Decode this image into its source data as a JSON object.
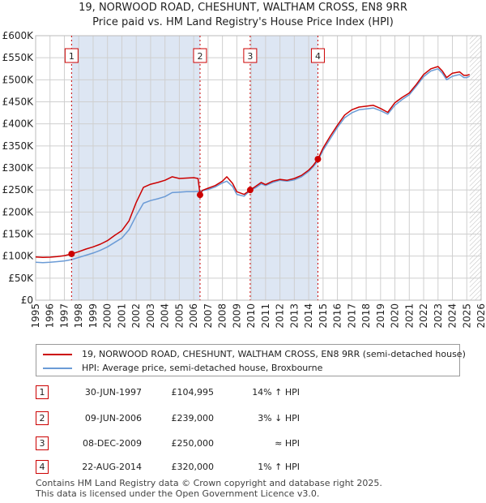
{
  "title_line1": "19, NORWOOD ROAD, CHESHUNT, WALTHAM CROSS, EN8 9RR",
  "title_line2": "Price paid vs. HM Land Registry's House Price Index (HPI)",
  "legend": {
    "property_label": "19, NORWOOD ROAD, CHESHUNT, WALTHAM CROSS, EN8 9RR (semi-detached house)",
    "hpi_label": "HPI: Average price, semi-detached house, Broxbourne"
  },
  "transactions": [
    {
      "num": "1",
      "date": "30-JUN-1997",
      "price": "£104,995",
      "hpi": "14% ↑ HPI"
    },
    {
      "num": "2",
      "date": "09-JUN-2006",
      "price": "£239,000",
      "hpi": "3% ↓ HPI"
    },
    {
      "num": "3",
      "date": "08-DEC-2009",
      "price": "£250,000",
      "hpi": "≈ HPI"
    },
    {
      "num": "4",
      "date": "22-AUG-2014",
      "price": "£320,000",
      "hpi": "1% ↑ HPI"
    }
  ],
  "footer": {
    "line1": "Contains HM Land Registry data © Crown copyright and database right 2025.",
    "line2": "This data is licensed under the Open Government Licence v3.0."
  },
  "colors": {
    "property": "#cc0000",
    "hpi": "#6b9bd6",
    "shade": "#dde6f3",
    "grid": "#cfcfcf"
  },
  "chart_data": {
    "type": "line",
    "xlim": [
      1995,
      2026
    ],
    "ylim": [
      0,
      600000
    ],
    "x_ticks": [
      "1995",
      "1996",
      "1997",
      "1998",
      "1999",
      "2000",
      "2001",
      "2002",
      "2003",
      "2004",
      "2005",
      "2006",
      "2007",
      "2008",
      "2009",
      "2010",
      "2011",
      "2012",
      "2013",
      "2014",
      "2015",
      "2016",
      "2017",
      "2018",
      "2019",
      "2020",
      "2021",
      "2022",
      "2023",
      "2024",
      "2025",
      "2026"
    ],
    "y_ticks": [
      {
        "value": 0,
        "label": "£0"
      },
      {
        "value": 50000,
        "label": "£50K"
      },
      {
        "value": 100000,
        "label": "£100K"
      },
      {
        "value": 150000,
        "label": "£150K"
      },
      {
        "value": 200000,
        "label": "£200K"
      },
      {
        "value": 250000,
        "label": "£250K"
      },
      {
        "value": 300000,
        "label": "£300K"
      },
      {
        "value": 350000,
        "label": "£350K"
      },
      {
        "value": 400000,
        "label": "£400K"
      },
      {
        "value": 450000,
        "label": "£450K"
      },
      {
        "value": 500000,
        "label": "£500K"
      },
      {
        "value": 550000,
        "label": "£550K"
      },
      {
        "value": 600000,
        "label": "£600K"
      }
    ],
    "shaded_ranges": [
      [
        1997.5,
        2006.44
      ],
      [
        2009.93,
        2014.64
      ]
    ],
    "hatched_from": 2025.2,
    "markers": [
      {
        "label": "1",
        "x": 1997.5,
        "y": 104995
      },
      {
        "label": "2",
        "x": 2006.44,
        "y": 239000
      },
      {
        "label": "3",
        "x": 2009.93,
        "y": 250000
      },
      {
        "label": "4",
        "x": 2014.64,
        "y": 320000
      }
    ],
    "series": [
      {
        "name": "19, NORWOOD ROAD, CHESHUNT, WALTHAM CROSS, EN8 9RR (semi-detached house)",
        "color": "#cc0000",
        "x": [
          1995.0,
          1995.5,
          1996.0,
          1996.5,
          1997.0,
          1997.5,
          1998.0,
          1998.5,
          1999.0,
          1999.5,
          2000.0,
          2000.5,
          2001.0,
          2001.5,
          2002.0,
          2002.5,
          2003.0,
          2003.5,
          2004.0,
          2004.5,
          2005.0,
          2005.5,
          2006.0,
          2006.3,
          2006.44,
          2006.6,
          2007.0,
          2007.5,
          2008.0,
          2008.3,
          2008.7,
          2009.0,
          2009.5,
          2009.93,
          2010.3,
          2010.7,
          2011.0,
          2011.5,
          2012.0,
          2012.5,
          2013.0,
          2013.5,
          2014.0,
          2014.3,
          2014.64,
          2015.0,
          2015.5,
          2016.0,
          2016.5,
          2017.0,
          2017.5,
          2018.0,
          2018.5,
          2019.0,
          2019.5,
          2020.0,
          2020.5,
          2021.0,
          2021.5,
          2022.0,
          2022.5,
          2023.0,
          2023.3,
          2023.6,
          2024.0,
          2024.5,
          2024.8,
          2025.0,
          2025.2
        ],
        "values": [
          98000,
          97000,
          97500,
          99000,
          101000,
          104995,
          110000,
          116000,
          121000,
          127000,
          135000,
          147000,
          158000,
          180000,
          222000,
          256000,
          263000,
          267000,
          272000,
          280000,
          276000,
          277000,
          278000,
          276000,
          239000,
          249000,
          254000,
          260000,
          270000,
          280000,
          265000,
          246000,
          240000,
          250000,
          258000,
          267000,
          262000,
          270000,
          274000,
          272000,
          276000,
          283000,
          295000,
          305000,
          320000,
          345000,
          372000,
          397000,
          420000,
          432000,
          438000,
          440000,
          442000,
          435000,
          426000,
          448000,
          460000,
          470000,
          490000,
          512000,
          525000,
          530000,
          520000,
          505000,
          515000,
          518000,
          510000,
          510000,
          512000
        ]
      },
      {
        "name": "HPI: Average price, semi-detached house, Broxbourne",
        "color": "#6b9bd6",
        "x": [
          1995.0,
          1995.5,
          1996.0,
          1996.5,
          1997.0,
          1997.5,
          1998.0,
          1998.5,
          1999.0,
          1999.5,
          2000.0,
          2000.5,
          2001.0,
          2001.5,
          2002.0,
          2002.5,
          2003.0,
          2003.5,
          2004.0,
          2004.5,
          2005.0,
          2005.5,
          2006.0,
          2006.44,
          2007.0,
          2007.5,
          2008.0,
          2008.3,
          2008.7,
          2009.0,
          2009.5,
          2009.93,
          2010.3,
          2010.7,
          2011.0,
          2011.5,
          2012.0,
          2012.5,
          2013.0,
          2013.5,
          2014.0,
          2014.3,
          2014.64,
          2015.0,
          2015.5,
          2016.0,
          2016.5,
          2017.0,
          2017.5,
          2018.0,
          2018.5,
          2019.0,
          2019.5,
          2020.0,
          2020.5,
          2021.0,
          2021.5,
          2022.0,
          2022.5,
          2023.0,
          2023.3,
          2023.6,
          2024.0,
          2024.5,
          2024.8,
          2025.0,
          2025.2
        ],
        "values": [
          86000,
          85000,
          86000,
          87500,
          89000,
          92000,
          97000,
          102000,
          107000,
          113000,
          121000,
          131000,
          141000,
          160000,
          192000,
          220000,
          226000,
          230000,
          235000,
          244000,
          245000,
          246000,
          246000,
          247000,
          251000,
          257000,
          266000,
          270000,
          258000,
          240000,
          236000,
          249000,
          255000,
          264000,
          260000,
          267000,
          272000,
          270000,
          273000,
          280000,
          292000,
          302000,
          316000,
          340000,
          366000,
          392000,
          414000,
          425000,
          432000,
          434000,
          436000,
          430000,
          422000,
          442000,
          455000,
          466000,
          486000,
          507000,
          520000,
          525000,
          515000,
          500000,
          508000,
          512000,
          505000,
          505000,
          508000
        ]
      }
    ]
  }
}
